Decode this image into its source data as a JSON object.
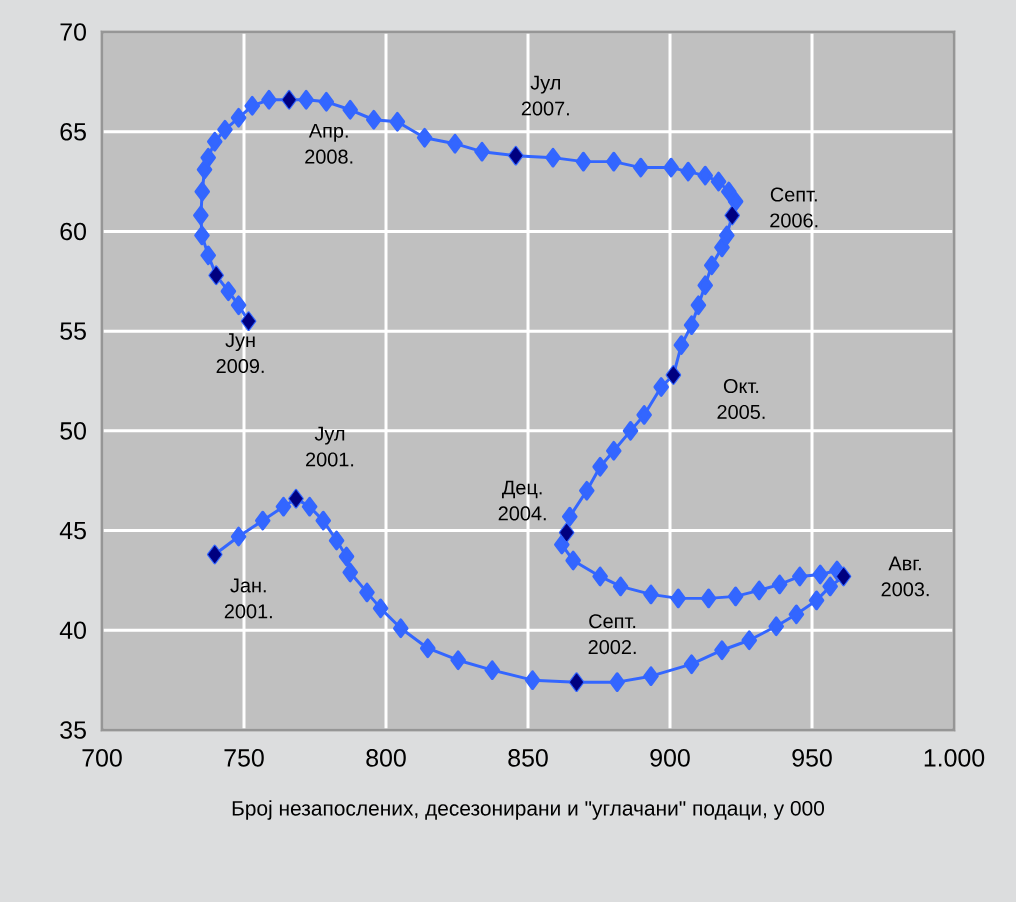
{
  "chart_data": {
    "type": "line",
    "xlabel": "Број незапослених, десезонирани и \"углачани\" подаци, у 000",
    "xlim": [
      700,
      1000
    ],
    "ylim": [
      35,
      70
    ],
    "xticks": [
      700,
      750,
      800,
      850,
      900,
      950,
      {
        "value": 1000,
        "label": "1.000"
      }
    ],
    "yticks": [
      35,
      40,
      45,
      50,
      55,
      60,
      65,
      70
    ],
    "grid": true,
    "marker": "diamond",
    "line_style": "solid",
    "series": [
      {
        "color": "#3366ff",
        "x": [
          739.7,
          748.1,
          756.6,
          763.9,
          768.3,
          773.1,
          777.9,
          782.6,
          786.1,
          787.4,
          793.3,
          798.1,
          805.2,
          814.7,
          825.4,
          837.4,
          851.6,
          867.1,
          881.4,
          893.3,
          907.6,
          918.3,
          927.9,
          937.4,
          944.5,
          951.6,
          956.4,
          961.1,
          958.8,
          952.9,
          945.7,
          938.6,
          931.4,
          923.1,
          913.6,
          902.9,
          893.3,
          882.6,
          875.4,
          865.9,
          861.9,
          863.6,
          864.7,
          870.7,
          875.4,
          880.2,
          886.1,
          890.9,
          896.9,
          901.2,
          904.0,
          907.6,
          910.0,
          912.4,
          914.7,
          918.3,
          920.0,
          921.9,
          923.1,
          920.7,
          917.1,
          912.4,
          906.4,
          900.4,
          889.7,
          880.2,
          869.5,
          858.8,
          845.7,
          833.8,
          824.3,
          813.6,
          804.0,
          795.7,
          787.4,
          779.0,
          771.9,
          765.9,
          758.8,
          752.9,
          748.1,
          743.3,
          739.7,
          737.4,
          736.1,
          735.3,
          734.8,
          735.2,
          737.4,
          740.2,
          744.5,
          748.1,
          751.6
        ],
        "values": [
          43.8,
          44.7,
          45.5,
          46.2,
          46.6,
          46.2,
          45.5,
          44.5,
          43.7,
          42.9,
          41.9,
          41.1,
          40.1,
          39.1,
          38.5,
          38.0,
          37.5,
          37.4,
          37.4,
          37.7,
          38.3,
          39.0,
          39.5,
          40.2,
          40.8,
          41.5,
          42.2,
          42.7,
          43.0,
          42.8,
          42.7,
          42.3,
          42.0,
          41.7,
          41.6,
          41.6,
          41.8,
          42.2,
          42.7,
          43.5,
          44.3,
          44.9,
          45.7,
          47.0,
          48.2,
          49.0,
          50.0,
          50.8,
          52.2,
          52.8,
          54.3,
          55.3,
          56.3,
          57.3,
          58.3,
          59.2,
          59.8,
          60.8,
          61.5,
          62.0,
          62.5,
          62.8,
          63.0,
          63.2,
          63.2,
          63.5,
          63.5,
          63.7,
          63.8,
          64.0,
          64.4,
          64.7,
          65.5,
          65.6,
          66.1,
          66.5,
          66.6,
          66.6,
          66.6,
          66.3,
          65.7,
          65.1,
          64.5,
          63.7,
          63.1,
          62.0,
          60.8,
          59.8,
          58.8,
          57.8,
          57.0,
          56.3,
          55.5
        ]
      },
      {
        "type": "scatter",
        "color": "#000080",
        "x": [
          739.7,
          768.3,
          867.1,
          961.1,
          863.6,
          901.2,
          921.9,
          845.7,
          765.9,
          740.2,
          751.6
        ],
        "values": [
          43.8,
          46.6,
          37.4,
          42.7,
          44.9,
          52.8,
          60.8,
          63.8,
          66.6,
          57.8,
          55.5
        ]
      }
    ],
    "annotations": [
      {
        "text": "Јан. 2001.",
        "x": 739.7,
        "y": 43.8
      },
      {
        "text": "Јул 2001.",
        "x": 768.3,
        "y": 46.6
      },
      {
        "text": "Септ. 2002.",
        "x": 867.1,
        "y": 37.4
      },
      {
        "text": "Авг. 2003.",
        "x": 961.1,
        "y": 42.7
      },
      {
        "text": "Дец. 2004.",
        "x": 863.6,
        "y": 44.9
      },
      {
        "text": "Окт. 2005.",
        "x": 901.2,
        "y": 52.8
      },
      {
        "text": "Септ. 2006.",
        "x": 921.9,
        "y": 60.8
      },
      {
        "text": "Јул 2007.",
        "x": 845.7,
        "y": 63.8
      },
      {
        "text": "Апр. 2008.",
        "x": 765.9,
        "y": 66.6
      },
      {
        "text": "Јун 2009.",
        "x": 751.6,
        "y": 55.5
      }
    ]
  }
}
